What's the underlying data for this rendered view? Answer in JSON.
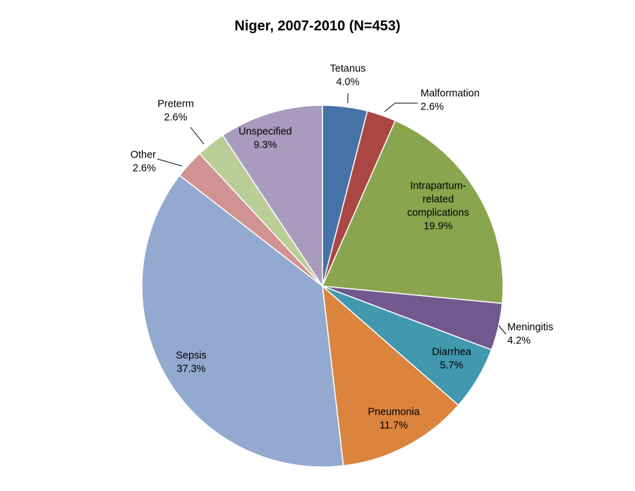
{
  "chart_data": {
    "type": "pie",
    "title": "Niger, 2007-2010 (N=453)",
    "slices": [
      {
        "name": "Tetanus",
        "value": 4.0,
        "label": "4.0%",
        "color": "#4572A7"
      },
      {
        "name": "Malformation",
        "value": 2.6,
        "label": "2.6%",
        "color": "#AA4643"
      },
      {
        "name": "Intrapartum-related complications",
        "name_lines": [
          "Intrapartum-",
          "related",
          "complications"
        ],
        "value": 19.9,
        "label": "19.9%",
        "color": "#89A54E"
      },
      {
        "name": "Meningitis",
        "value": 4.2,
        "label": "4.2%",
        "color": "#71588F"
      },
      {
        "name": "Diarrhea",
        "value": 5.7,
        "label": "5.7%",
        "color": "#4198AF"
      },
      {
        "name": "Pneumonia",
        "value": 11.7,
        "label": "11.7%",
        "color": "#DB843D"
      },
      {
        "name": "Sepsis",
        "value": 37.3,
        "label": "37.3%",
        "color": "#93A9CF"
      },
      {
        "name": "Other",
        "value": 2.6,
        "label": "2.6%",
        "color": "#D19392"
      },
      {
        "name": "Preterm",
        "value": 2.6,
        "label": "2.6%",
        "color": "#B9CD96"
      },
      {
        "name": "Unspecified",
        "value": 9.3,
        "label": "9.3%",
        "color": "#A99BBD"
      }
    ],
    "start_angle": "12 o'clock",
    "direction": "clockwise"
  }
}
